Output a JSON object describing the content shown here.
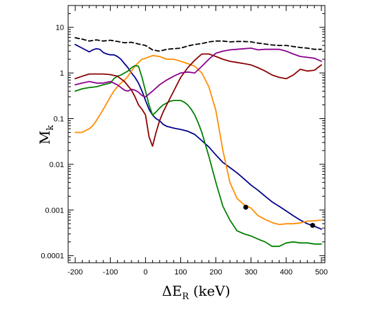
{
  "chart_data": {
    "type": "line",
    "title": "",
    "xlabel": {
      "main": "ΔE",
      "sub": "R",
      "suffix": " (keV)"
    },
    "ylabel": {
      "main": "M",
      "sub": "k"
    },
    "xlim": [
      -220,
      510
    ],
    "ylim": [
      7e-05,
      30
    ],
    "yscale": "log",
    "grid": false,
    "x_ticks": [
      -200,
      -100,
      0,
      100,
      200,
      300,
      400,
      500
    ],
    "x_tick_labels": [
      "-200",
      "-100",
      "0",
      "100",
      "200",
      "300",
      "400",
      "500"
    ],
    "y_ticks": [
      0.0001,
      0.001,
      0.01,
      0.1,
      1,
      10
    ],
    "y_tick_labels": [
      "0.0001",
      "0.001",
      "0.01",
      "0.1",
      "1",
      "10"
    ],
    "series": [
      {
        "color": "#000000",
        "dash": true,
        "x": [
          -200,
          -180,
          -160,
          -140,
          -120,
          -100,
          -80,
          -60,
          -40,
          -20,
          0,
          20,
          40,
          60,
          80,
          100,
          120,
          140,
          160,
          180,
          200,
          220,
          240,
          260,
          280,
          300,
          320,
          340,
          360,
          380,
          400,
          420,
          440,
          460,
          480,
          500
        ],
        "y": [
          5.9,
          5.5,
          5.0,
          5.3,
          5.0,
          5.2,
          4.9,
          4.6,
          4.7,
          4.3,
          4.0,
          3.2,
          3.0,
          3.3,
          3.4,
          3.5,
          3.9,
          4.2,
          4.4,
          4.8,
          5.0,
          5.0,
          4.8,
          4.9,
          4.9,
          4.8,
          4.5,
          4.3,
          4.1,
          4.0,
          4.0,
          3.8,
          3.6,
          3.5,
          3.3,
          3.3
        ]
      },
      {
        "color": "#00008b",
        "x": [
          -200,
          -180,
          -160,
          -150,
          -140,
          -130,
          -120,
          -110,
          -100,
          -90,
          -80,
          -70,
          -60,
          -50,
          -40,
          -30,
          -20,
          -10,
          0,
          10,
          20,
          30,
          40,
          50,
          60,
          80,
          100,
          120,
          140,
          160,
          180,
          200,
          220,
          240,
          260,
          280,
          300,
          320,
          340,
          360,
          380,
          400,
          420,
          440,
          460,
          480,
          500
        ],
        "y": [
          4.2,
          3.5,
          2.9,
          3.2,
          3.4,
          3.3,
          2.8,
          2.6,
          2.5,
          2.5,
          2.3,
          2.0,
          1.6,
          1.3,
          1.0,
          0.8,
          0.6,
          0.4,
          0.25,
          0.16,
          0.12,
          0.1,
          0.09,
          0.075,
          0.068,
          0.062,
          0.058,
          0.053,
          0.045,
          0.033,
          0.024,
          0.016,
          0.011,
          0.0085,
          0.0065,
          0.0048,
          0.0035,
          0.0027,
          0.002,
          0.0015,
          0.0012,
          0.00095,
          0.00075,
          0.0006,
          0.0005,
          0.00044,
          0.00038
        ]
      },
      {
        "color": "#ff8c00",
        "x": [
          -200,
          -180,
          -170,
          -160,
          -150,
          -140,
          -130,
          -120,
          -110,
          -100,
          -90,
          -80,
          -70,
          -60,
          -50,
          -40,
          -30,
          -20,
          -10,
          0,
          20,
          40,
          60,
          80,
          100,
          120,
          140,
          160,
          180,
          200,
          220,
          240,
          260,
          280,
          300,
          320,
          340,
          360,
          380,
          400,
          420,
          440,
          460,
          480,
          500
        ],
        "y": [
          0.05,
          0.05,
          0.055,
          0.06,
          0.07,
          0.09,
          0.12,
          0.16,
          0.22,
          0.3,
          0.4,
          0.5,
          0.6,
          0.7,
          0.85,
          1.1,
          1.4,
          1.7,
          2.0,
          2.1,
          2.4,
          2.3,
          2.0,
          2.0,
          1.8,
          1.6,
          1.4,
          1.0,
          0.5,
          0.15,
          0.02,
          0.004,
          0.0018,
          0.0013,
          0.0011,
          0.00075,
          0.00062,
          0.00053,
          0.00048,
          0.0005,
          0.0005,
          0.00052,
          0.00057,
          0.00058,
          0.0006
        ]
      },
      {
        "color": "#008000",
        "x": [
          -200,
          -180,
          -160,
          -140,
          -120,
          -100,
          -90,
          -80,
          -70,
          -60,
          -50,
          -40,
          -30,
          -20,
          -10,
          0,
          10,
          20,
          30,
          40,
          50,
          60,
          70,
          80,
          90,
          100,
          110,
          120,
          130,
          140,
          150,
          160,
          180,
          200,
          220,
          240,
          260,
          280,
          300,
          320,
          340,
          360,
          380,
          400,
          420,
          440,
          460,
          480,
          500
        ],
        "y": [
          0.4,
          0.45,
          0.48,
          0.5,
          0.55,
          0.6,
          0.75,
          0.85,
          0.9,
          1.0,
          1.1,
          1.3,
          1.45,
          1.4,
          0.8,
          0.4,
          0.2,
          0.12,
          0.14,
          0.17,
          0.2,
          0.22,
          0.24,
          0.25,
          0.25,
          0.25,
          0.23,
          0.2,
          0.16,
          0.12,
          0.08,
          0.05,
          0.015,
          0.004,
          0.0012,
          0.0006,
          0.00035,
          0.0003,
          0.00027,
          0.00023,
          0.0002,
          0.00016,
          0.00016,
          0.00019,
          0.0002,
          0.00019,
          0.00019,
          0.00018,
          0.00018
        ]
      },
      {
        "color": "#8b0000",
        "x": [
          -200,
          -180,
          -160,
          -140,
          -120,
          -100,
          -80,
          -60,
          -40,
          -30,
          -20,
          -10,
          0,
          10,
          20,
          30,
          40,
          50,
          60,
          80,
          100,
          120,
          140,
          160,
          180,
          200,
          220,
          240,
          260,
          280,
          300,
          320,
          340,
          360,
          380,
          400,
          420,
          440,
          460,
          480,
          500
        ],
        "y": [
          0.75,
          0.85,
          0.95,
          0.95,
          0.95,
          0.92,
          0.85,
          0.65,
          0.42,
          0.3,
          0.2,
          0.16,
          0.12,
          0.04,
          0.025,
          0.05,
          0.09,
          0.14,
          0.2,
          0.4,
          0.8,
          1.3,
          1.9,
          2.6,
          2.6,
          2.3,
          2.0,
          1.8,
          1.7,
          1.6,
          1.5,
          1.3,
          1.1,
          0.9,
          0.8,
          0.75,
          0.9,
          1.2,
          1.1,
          1.15,
          1.5
        ]
      },
      {
        "color": "#8b008b",
        "x": [
          -200,
          -180,
          -160,
          -140,
          -120,
          -100,
          -80,
          -60,
          -50,
          -40,
          -30,
          -20,
          -10,
          0,
          20,
          40,
          60,
          80,
          100,
          120,
          140,
          160,
          180,
          200,
          220,
          240,
          260,
          280,
          300,
          320,
          340,
          360,
          380,
          400,
          420,
          440,
          460,
          480,
          500
        ],
        "y": [
          0.55,
          0.6,
          0.65,
          0.6,
          0.6,
          0.65,
          0.55,
          0.42,
          0.4,
          0.44,
          0.42,
          0.38,
          0.32,
          0.3,
          0.4,
          0.55,
          0.7,
          0.85,
          1.0,
          1.05,
          1.0,
          1.4,
          2.0,
          2.7,
          3.0,
          3.2,
          3.3,
          3.4,
          3.5,
          3.2,
          3.3,
          3.3,
          3.3,
          3.0,
          2.6,
          2.3,
          2.2,
          2.1,
          1.8
        ]
      }
    ],
    "markers": [
      {
        "x": 285,
        "y": 0.00115
      },
      {
        "x": 475,
        "y": 0.00046
      }
    ]
  }
}
